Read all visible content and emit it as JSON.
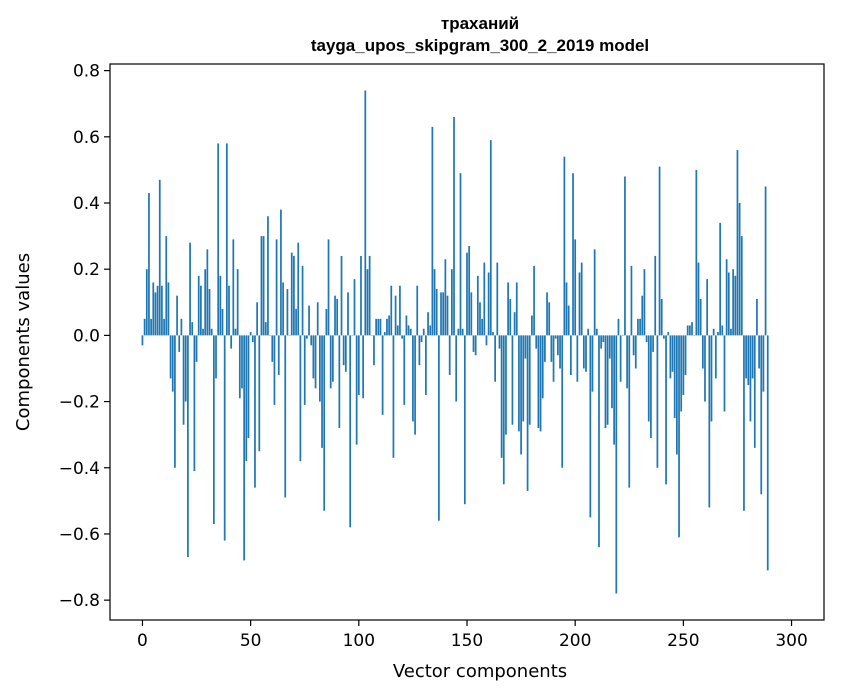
{
  "chart_data": {
    "type": "bar",
    "title_line1": "траханий",
    "title_line2": "tayga_upos_skipgram_300_2_2019 model",
    "xlabel": "Vector components",
    "ylabel": "Components values",
    "xlim": [
      -15,
      315
    ],
    "ylim": [
      -0.86,
      0.82
    ],
    "x_ticks": [
      0,
      50,
      100,
      150,
      200,
      250,
      300
    ],
    "x_tick_labels": [
      "0",
      "50",
      "100",
      "150",
      "200",
      "250",
      "300"
    ],
    "y_ticks": [
      -0.8,
      -0.6,
      -0.4,
      -0.2,
      0.0,
      0.2,
      0.4,
      0.6,
      0.8
    ],
    "y_tick_labels": [
      "−0.8",
      "−0.6",
      "−0.4",
      "−0.2",
      "0.0",
      "0.2",
      "0.4",
      "0.6",
      "0.8"
    ],
    "bar_color": "#1f77b4",
    "series": [
      {
        "name": "components",
        "values": [
          -0.03,
          0.05,
          0.2,
          0.43,
          0.05,
          0.16,
          0.13,
          0.15,
          0.47,
          0.15,
          0.05,
          0.3,
          0.16,
          -0.13,
          -0.17,
          -0.4,
          0.12,
          -0.05,
          0.05,
          -0.27,
          -0.2,
          -0.67,
          0.28,
          0.04,
          -0.41,
          -0.08,
          0.18,
          0.15,
          0.02,
          0.2,
          0.26,
          0.14,
          0.02,
          -0.57,
          -0.13,
          0.58,
          0.18,
          0.08,
          -0.62,
          0.58,
          0.15,
          -0.04,
          0.29,
          0.02,
          0.2,
          -0.19,
          -0.16,
          -0.68,
          -0.38,
          -0.31,
          0.01,
          -0.02,
          -0.46,
          0.1,
          -0.35,
          0.3,
          0.3,
          0.04,
          0.36,
          0.0,
          -0.08,
          -0.21,
          0.29,
          -0.12,
          0.38,
          0.16,
          -0.49,
          0.14,
          0.0,
          0.25,
          0.24,
          0.08,
          0.28,
          -0.38,
          0.21,
          -0.21,
          -0.01,
          0.09,
          -0.03,
          -0.13,
          -0.16,
          0.1,
          -0.2,
          -0.34,
          -0.53,
          0.08,
          0.29,
          -0.16,
          -0.14,
          0.12,
          0.11,
          -0.28,
          0.24,
          -0.09,
          -0.11,
          0.13,
          -0.58,
          0.0,
          0.17,
          -0.33,
          -0.18,
          0.24,
          -0.19,
          0.74,
          0.2,
          0.24,
          0.0,
          -0.09,
          0.05,
          0.05,
          0.05,
          -0.24,
          0.01,
          0.05,
          0.06,
          0.15,
          -0.37,
          0.12,
          0.03,
          0.15,
          -0.01,
          -0.21,
          0.06,
          0.03,
          0.02,
          -0.26,
          -0.3,
          0.15,
          -0.09,
          -0.02,
          0.02,
          -0.18,
          0.07,
          0.03,
          0.63,
          0.2,
          0.14,
          -0.56,
          0.13,
          0.13,
          0.23,
          0.12,
          -0.12,
          0.2,
          0.66,
          -0.2,
          0.02,
          0.49,
          0.02,
          -0.51,
          0.25,
          0.27,
          0.13,
          -0.05,
          -0.06,
          0.18,
          0.1,
          0.05,
          0.22,
          -0.03,
          0.19,
          0.59,
          0.01,
          -0.14,
          0.22,
          -0.04,
          -0.37,
          -0.45,
          -0.3,
          0.16,
          0.11,
          -0.27,
          0.07,
          0.16,
          -0.29,
          -0.36,
          -0.26,
          -0.07,
          -0.47,
          -0.27,
          0.06,
          0.21,
          -0.04,
          -0.28,
          -0.29,
          -0.19,
          -0.08,
          0.13,
          0.1,
          -0.08,
          -0.14,
          -0.01,
          -0.06,
          -0.1,
          -0.4,
          0.54,
          0.16,
          0.09,
          -0.12,
          0.49,
          0.29,
          -0.14,
          0.19,
          0.22,
          -0.1,
          -0.11,
          0.02,
          -0.55,
          -0.17,
          0.26,
          0.02,
          -0.64,
          -0.04,
          -0.02,
          -0.28,
          -0.27,
          -0.07,
          -0.22,
          -0.33,
          -0.78,
          0.05,
          -0.14,
          0.0,
          0.48,
          -0.16,
          -0.46,
          0.21,
          -0.06,
          -0.1,
          0.05,
          0.05,
          0.12,
          0.2,
          -0.02,
          -0.26,
          -0.31,
          -0.05,
          0.24,
          -0.4,
          0.51,
          0.11,
          -0.01,
          -0.45,
          0.01,
          -0.13,
          -0.11,
          -0.25,
          -0.36,
          -0.61,
          -0.23,
          -0.18,
          -0.12,
          0.03,
          0.03,
          0.04,
          0.0,
          0.5,
          0.22,
          0.11,
          -0.1,
          -0.2,
          0.17,
          -0.52,
          -0.26,
          0.02,
          -0.13,
          0.01,
          0.34,
          0.03,
          -0.23,
          0.23,
          0.19,
          0.02,
          0.2,
          0.18,
          0.56,
          0.4,
          0.3,
          -0.53,
          -0.13,
          -0.15,
          -0.26,
          -0.13,
          -0.34,
          0.11,
          -0.1,
          -0.48,
          -0.17,
          0.45,
          -0.71
        ]
      }
    ]
  }
}
